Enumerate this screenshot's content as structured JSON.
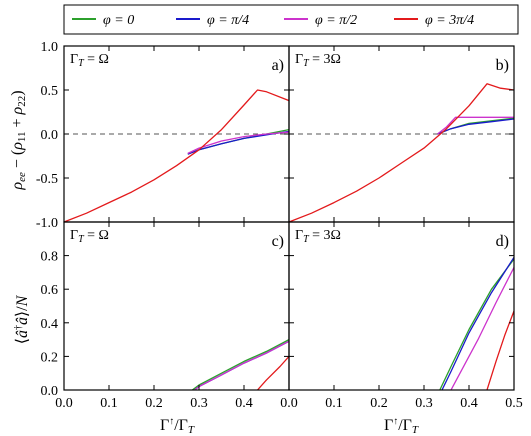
{
  "chart_data": [
    {
      "id": "a",
      "type": "line",
      "panel_label": "a)",
      "annotation": "Γ_T = Ω",
      "ylabel": "ρ_ee − (ρ_11 + ρ_22)",
      "ylim": [
        -1.0,
        1.0
      ],
      "xlim": [
        0.0,
        0.5
      ],
      "yticks": [
        "-1.0",
        "-0.5",
        "0.0",
        "0.5",
        "1.0"
      ],
      "xticks": [],
      "reference_line": {
        "y": 0.0,
        "style": "dashed"
      },
      "series": [
        {
          "name": "φ = 0",
          "color": "#2ca02c",
          "x": [
            0.275,
            0.3,
            0.35,
            0.4,
            0.45,
            0.5
          ],
          "y": [
            -0.23,
            -0.18,
            -0.11,
            -0.05,
            0.0,
            0.05
          ]
        },
        {
          "name": "φ = π/4",
          "color": "#1a1acc",
          "x": [
            0.275,
            0.3,
            0.35,
            0.4,
            0.45,
            0.5
          ],
          "y": [
            -0.23,
            -0.18,
            -0.11,
            -0.05,
            -0.01,
            0.03
          ]
        },
        {
          "name": "φ = π/2",
          "color": "#cc33cc",
          "x": [
            0.275,
            0.3,
            0.35,
            0.4,
            0.45,
            0.5
          ],
          "y": [
            -0.22,
            -0.16,
            -0.08,
            -0.03,
            0.0,
            0.02
          ]
        },
        {
          "name": "φ = 3π/4",
          "color": "#e31a1c",
          "x": [
            0.0,
            0.05,
            0.1,
            0.15,
            0.2,
            0.25,
            0.3,
            0.35,
            0.4,
            0.43,
            0.45,
            0.5
          ],
          "y": [
            -1.0,
            -0.9,
            -0.78,
            -0.66,
            -0.52,
            -0.36,
            -0.18,
            0.05,
            0.33,
            0.5,
            0.48,
            0.38
          ]
        }
      ]
    },
    {
      "id": "b",
      "type": "line",
      "panel_label": "b)",
      "annotation": "Γ_T = 3Ω",
      "ylim": [
        -1.0,
        1.0
      ],
      "xlim": [
        0.0,
        0.5
      ],
      "yticks": [],
      "xticks": [],
      "reference_line": {
        "y": 0.0,
        "style": "dashed"
      },
      "series": [
        {
          "name": "φ = 0",
          "color": "#2ca02c",
          "x": [
            0.33,
            0.36,
            0.4,
            0.45,
            0.5
          ],
          "y": [
            0.0,
            0.06,
            0.12,
            0.15,
            0.18
          ]
        },
        {
          "name": "φ = π/4",
          "color": "#1a1acc",
          "x": [
            0.33,
            0.36,
            0.4,
            0.45,
            0.5
          ],
          "y": [
            0.0,
            0.06,
            0.11,
            0.14,
            0.17
          ]
        },
        {
          "name": "φ = π/2",
          "color": "#cc33cc",
          "x": [
            0.33,
            0.35,
            0.37,
            0.4,
            0.45,
            0.5
          ],
          "y": [
            0.0,
            0.08,
            0.19,
            0.19,
            0.19,
            0.19
          ]
        },
        {
          "name": "φ = 3π/4",
          "color": "#e31a1c",
          "x": [
            0.0,
            0.05,
            0.1,
            0.15,
            0.2,
            0.25,
            0.3,
            0.35,
            0.4,
            0.44,
            0.47,
            0.5
          ],
          "y": [
            -1.0,
            -0.9,
            -0.78,
            -0.65,
            -0.5,
            -0.33,
            -0.16,
            0.06,
            0.32,
            0.57,
            0.52,
            0.5
          ]
        }
      ]
    },
    {
      "id": "c",
      "type": "line",
      "panel_label": "c)",
      "annotation": "Γ_T = Ω",
      "ylabel": "⟨â†â⟩/N",
      "xlabel": "Γ↑/Γ_T",
      "ylim": [
        0.0,
        1.0
      ],
      "xlim": [
        0.0,
        0.5
      ],
      "yticks": [
        "0.0",
        "0.2",
        "0.4",
        "0.6",
        "0.8"
      ],
      "xticks": [
        "0.0",
        "0.1",
        "0.2",
        "0.3",
        "0.4"
      ],
      "series": [
        {
          "name": "φ = 0",
          "color": "#2ca02c",
          "x": [
            0.285,
            0.3,
            0.35,
            0.4,
            0.45,
            0.5
          ],
          "y": [
            0.0,
            0.03,
            0.1,
            0.17,
            0.23,
            0.3
          ]
        },
        {
          "name": "φ = π/4",
          "color": "#1a1acc",
          "x": [
            0.29,
            0.3,
            0.35,
            0.4,
            0.45,
            0.5
          ],
          "y": [
            0.0,
            0.02,
            0.09,
            0.16,
            0.22,
            0.29
          ]
        },
        {
          "name": "φ = π/2",
          "color": "#cc33cc",
          "x": [
            0.29,
            0.3,
            0.35,
            0.4,
            0.45,
            0.5
          ],
          "y": [
            0.0,
            0.02,
            0.09,
            0.16,
            0.22,
            0.29
          ]
        },
        {
          "name": "φ = 3π/4",
          "color": "#e31a1c",
          "x": [
            0.43,
            0.45,
            0.48,
            0.5
          ],
          "y": [
            0.0,
            0.06,
            0.14,
            0.2
          ]
        }
      ]
    },
    {
      "id": "d",
      "type": "line",
      "panel_label": "d)",
      "annotation": "Γ_T = 3Ω",
      "xlabel": "Γ↑/Γ_T",
      "ylim": [
        0.0,
        1.0
      ],
      "xlim": [
        0.0,
        0.5
      ],
      "yticks": [],
      "xticks": [
        "0.0",
        "0.1",
        "0.2",
        "0.3",
        "0.4",
        "0.5"
      ],
      "series": [
        {
          "name": "φ = 0",
          "color": "#2ca02c",
          "x": [
            0.335,
            0.36,
            0.4,
            0.45,
            0.5
          ],
          "y": [
            0.0,
            0.14,
            0.36,
            0.6,
            0.78
          ]
        },
        {
          "name": "φ = π/4",
          "color": "#1a1acc",
          "x": [
            0.34,
            0.36,
            0.4,
            0.45,
            0.5
          ],
          "y": [
            0.0,
            0.11,
            0.34,
            0.58,
            0.79
          ]
        },
        {
          "name": "φ = π/2",
          "color": "#cc33cc",
          "x": [
            0.36,
            0.38,
            0.42,
            0.46,
            0.5
          ],
          "y": [
            0.0,
            0.1,
            0.3,
            0.52,
            0.73
          ]
        },
        {
          "name": "φ = 3π/4",
          "color": "#e31a1c",
          "x": [
            0.44,
            0.46,
            0.48,
            0.5
          ],
          "y": [
            0.0,
            0.17,
            0.33,
            0.47
          ]
        }
      ]
    }
  ],
  "legend": [
    {
      "label": "φ = 0",
      "color": "#2ca02c"
    },
    {
      "label": "φ = π/4",
      "color": "#1a1acc"
    },
    {
      "label": "φ = π/2",
      "color": "#cc33cc"
    },
    {
      "label": "φ = 3π/4",
      "color": "#e31a1c"
    }
  ]
}
